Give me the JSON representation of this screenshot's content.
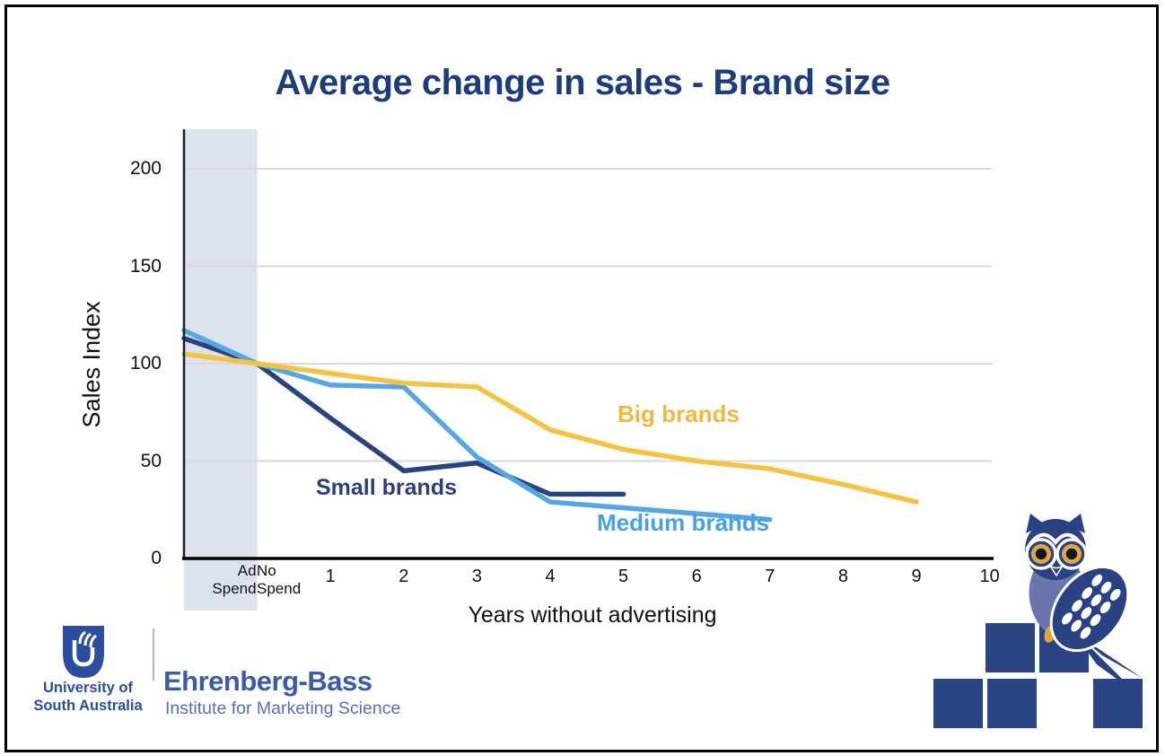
{
  "chart_data": {
    "type": "line",
    "title": "Average change in sales - Brand size",
    "title_color": "#1E3C7B",
    "xlabel": "Years without advertising",
    "ylabel": "Sales Index",
    "categories": [
      "Ad\nSpend",
      "No\nSpend",
      "1",
      "2",
      "3",
      "4",
      "5",
      "6",
      "7",
      "8",
      "9",
      "10"
    ],
    "yticks": [
      0,
      50,
      100,
      150,
      200
    ],
    "ylim": [
      0,
      220
    ],
    "grid": "horizontal",
    "grid_color": "#D8D8D8",
    "shaded_region": {
      "label": "Ad Spend",
      "covers": "Ad Spend to No Spend columns",
      "color": "#DCE2EE"
    },
    "series": [
      {
        "name": "Small brands",
        "color": "#29437F",
        "values": [
          113,
          100,
          72,
          45,
          49,
          33,
          33
        ]
      },
      {
        "name": "Medium brands",
        "color": "#55A6E3",
        "values": [
          117,
          100,
          89,
          88,
          52,
          29,
          26,
          23,
          20
        ]
      },
      {
        "name": "Big brands",
        "color": "#F4C343",
        "values": [
          105,
          100,
          95,
          90,
          88,
          66,
          56,
          50,
          46,
          38,
          29
        ]
      }
    ],
    "legend_position": "inline labels next to lines"
  },
  "footer": {
    "university_logo": {
      "line1": "University of",
      "line2": "South Australia"
    },
    "institute": {
      "name": "Ehrenberg-Bass",
      "tagline": "Institute for Marketing Science"
    }
  }
}
